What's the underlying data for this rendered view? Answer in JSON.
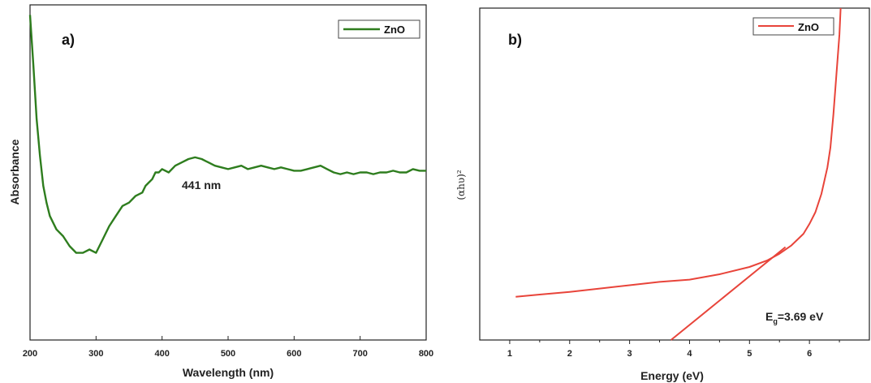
{
  "chart_data": [
    {
      "type": "line",
      "panel_label": "a)",
      "xlabel": "Wavelength (nm)",
      "ylabel": "Absorbance",
      "xlim": [
        200,
        800
      ],
      "ylim": [
        0,
        1
      ],
      "x_ticks": [
        "200",
        "300",
        "400",
        "500",
        "600",
        "700",
        "800"
      ],
      "grid": false,
      "legend_position": "top-right",
      "annotation": "441 nm",
      "colors": {
        "series": "#2e7d1e"
      },
      "series": [
        {
          "name": "ZnO",
          "x": [
            200,
            205,
            210,
            215,
            220,
            225,
            230,
            240,
            250,
            260,
            270,
            280,
            290,
            300,
            305,
            310,
            320,
            330,
            340,
            350,
            360,
            370,
            375,
            380,
            385,
            390,
            395,
            400,
            410,
            420,
            430,
            440,
            450,
            460,
            470,
            480,
            490,
            500,
            510,
            520,
            530,
            540,
            550,
            560,
            570,
            580,
            590,
            600,
            610,
            620,
            630,
            640,
            650,
            660,
            670,
            680,
            690,
            700,
            710,
            720,
            730,
            740,
            750,
            760,
            770,
            780,
            790,
            800
          ],
          "y": [
            0.97,
            0.82,
            0.66,
            0.55,
            0.46,
            0.41,
            0.37,
            0.33,
            0.31,
            0.28,
            0.26,
            0.26,
            0.27,
            0.26,
            0.28,
            0.3,
            0.34,
            0.37,
            0.4,
            0.41,
            0.43,
            0.44,
            0.46,
            0.47,
            0.48,
            0.5,
            0.5,
            0.51,
            0.5,
            0.52,
            0.53,
            0.54,
            0.545,
            0.54,
            0.53,
            0.52,
            0.515,
            0.51,
            0.515,
            0.52,
            0.51,
            0.515,
            0.52,
            0.515,
            0.51,
            0.515,
            0.51,
            0.505,
            0.505,
            0.51,
            0.515,
            0.52,
            0.51,
            0.5,
            0.495,
            0.5,
            0.495,
            0.5,
            0.5,
            0.495,
            0.5,
            0.5,
            0.505,
            0.5,
            0.5,
            0.51,
            0.505,
            0.505
          ]
        }
      ]
    },
    {
      "type": "line",
      "panel_label": "b)",
      "xlabel": "Energy (eV)",
      "ylabel": "(αhυ)²",
      "xlim": [
        0.5,
        7
      ],
      "ylim": [
        0,
        1
      ],
      "x_ticks": [
        "1",
        "2",
        "3",
        "4",
        "5",
        "6"
      ],
      "grid": false,
      "legend_position": "top-right",
      "annotation": "Eg=3.69 eV",
      "colors": {
        "series": "#e8443a"
      },
      "series": [
        {
          "name": "ZnO",
          "x": [
            1.1,
            1.5,
            2.0,
            2.5,
            3.0,
            3.5,
            4.0,
            4.5,
            5.0,
            5.3,
            5.5,
            5.7,
            5.9,
            6.0,
            6.1,
            6.2,
            6.3,
            6.35,
            6.4,
            6.45,
            6.5,
            6.52
          ],
          "y": [
            0.13,
            0.137,
            0.145,
            0.155,
            0.165,
            0.175,
            0.182,
            0.198,
            0.22,
            0.24,
            0.26,
            0.285,
            0.32,
            0.35,
            0.385,
            0.44,
            0.52,
            0.58,
            0.68,
            0.8,
            0.92,
            1.0
          ]
        },
        {
          "name": "",
          "role": "tangent-fit",
          "x": [
            3.69,
            5.6
          ],
          "y": [
            0.0,
            0.28
          ]
        }
      ]
    }
  ]
}
